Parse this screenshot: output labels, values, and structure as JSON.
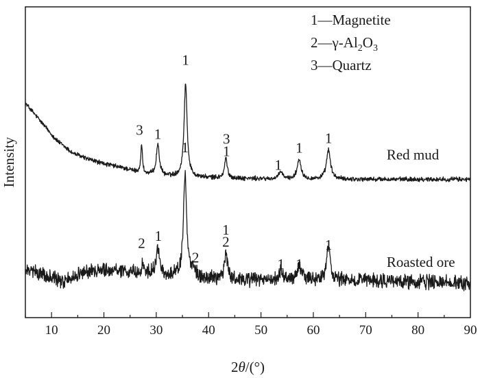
{
  "chart_data": {
    "type": "line",
    "xlabel": {
      "pre": "2",
      "theta": "θ",
      "post": "/(°)"
    },
    "ylabel": "Intensity",
    "xlim": [
      5,
      90
    ],
    "xticks": [
      10,
      20,
      30,
      40,
      50,
      60,
      70,
      80,
      90
    ],
    "yticks_shown": false,
    "ylim": [
      0,
      1
    ],
    "grid": false,
    "legend": {
      "placement": "top-right",
      "entries": [
        {
          "key": "1",
          "dash": "—",
          "parts": [
            {
              "t": "Magnetite"
            }
          ]
        },
        {
          "key": "2",
          "dash": "—",
          "parts": [
            {
              "t": "γ-Al"
            },
            {
              "t": "2",
              "sub": true
            },
            {
              "t": "O"
            },
            {
              "t": "3",
              "sub": true
            }
          ]
        },
        {
          "key": "3",
          "dash": "—",
          "parts": [
            {
              "t": "Quartz"
            }
          ]
        }
      ]
    },
    "series": [
      {
        "name": "Red mud",
        "color": "#1a1a1a",
        "baseline": [
          [
            5,
            0.69
          ],
          [
            8,
            0.63
          ],
          [
            11,
            0.57
          ],
          [
            14,
            0.53
          ],
          [
            17,
            0.51
          ],
          [
            20,
            0.495
          ],
          [
            24,
            0.48
          ],
          [
            28,
            0.46
          ],
          [
            32,
            0.455
          ],
          [
            40,
            0.45
          ],
          [
            55,
            0.445
          ],
          [
            70,
            0.445
          ],
          [
            90,
            0.445
          ]
        ],
        "peaks": [
          [
            27.2,
            0.09,
            0.2
          ],
          [
            30.3,
            0.1,
            0.35
          ],
          [
            35.6,
            0.3,
            0.35
          ],
          [
            43.3,
            0.065,
            0.3
          ],
          [
            53.8,
            0.025,
            0.4
          ],
          [
            57.3,
            0.065,
            0.45
          ],
          [
            62.9,
            0.095,
            0.45
          ]
        ],
        "noise": 0.006,
        "peak_labels": [
          {
            "text": "3",
            "x": 26.8,
            "y": 0.588
          },
          {
            "text": "1",
            "x": 30.3,
            "y": 0.575
          },
          {
            "text": "1",
            "x": 35.6,
            "y": 0.814
          },
          {
            "text": "3",
            "x": 43.4,
            "y": 0.56
          },
          {
            "text": "1",
            "x": 43.4,
            "y": 0.52
          },
          {
            "text": "1",
            "x": 53.3,
            "y": 0.476
          },
          {
            "text": "1",
            "x": 57.3,
            "y": 0.531
          },
          {
            "text": "1",
            "x": 62.9,
            "y": 0.562
          }
        ],
        "label": {
          "text": "Red mud",
          "x": 74,
          "y": 0.509
        }
      },
      {
        "name": "Roasted ore",
        "color": "#1a1a1a",
        "baseline": [
          [
            5,
            0.15
          ],
          [
            8,
            0.143
          ],
          [
            12,
            0.115
          ],
          [
            16,
            0.145
          ],
          [
            20,
            0.155
          ],
          [
            25,
            0.15
          ],
          [
            30,
            0.14
          ],
          [
            40,
            0.125
          ],
          [
            50,
            0.12
          ],
          [
            60,
            0.12
          ],
          [
            70,
            0.12
          ],
          [
            90,
            0.11
          ]
        ],
        "peaks": [
          [
            27.4,
            0.035,
            0.15
          ],
          [
            30.3,
            0.08,
            0.35
          ],
          [
            35.5,
            0.33,
            0.35
          ],
          [
            37.0,
            0.03,
            0.4
          ],
          [
            43.3,
            0.085,
            0.35
          ],
          [
            53.8,
            0.03,
            0.4
          ],
          [
            57.3,
            0.05,
            0.45
          ],
          [
            62.9,
            0.11,
            0.45
          ]
        ],
        "noise": 0.018,
        "peak_labels": [
          {
            "text": "2",
            "x": 27.2,
            "y": 0.224
          },
          {
            "text": "1",
            "x": 30.4,
            "y": 0.247
          },
          {
            "text": "1",
            "x": 35.5,
            "y": 0.532
          },
          {
            "text": "2",
            "x": 37.5,
            "y": 0.178
          },
          {
            "text": "1",
            "x": 43.3,
            "y": 0.267
          },
          {
            "text": "2",
            "x": 43.3,
            "y": 0.228
          },
          {
            "text": "1",
            "x": 53.8,
            "y": 0.157
          },
          {
            "text": "1",
            "x": 57.3,
            "y": 0.157
          },
          {
            "text": "1",
            "x": 62.9,
            "y": 0.218
          }
        ],
        "label": {
          "text": "Roasted ore",
          "x": 74,
          "y": 0.163
        }
      }
    ]
  }
}
